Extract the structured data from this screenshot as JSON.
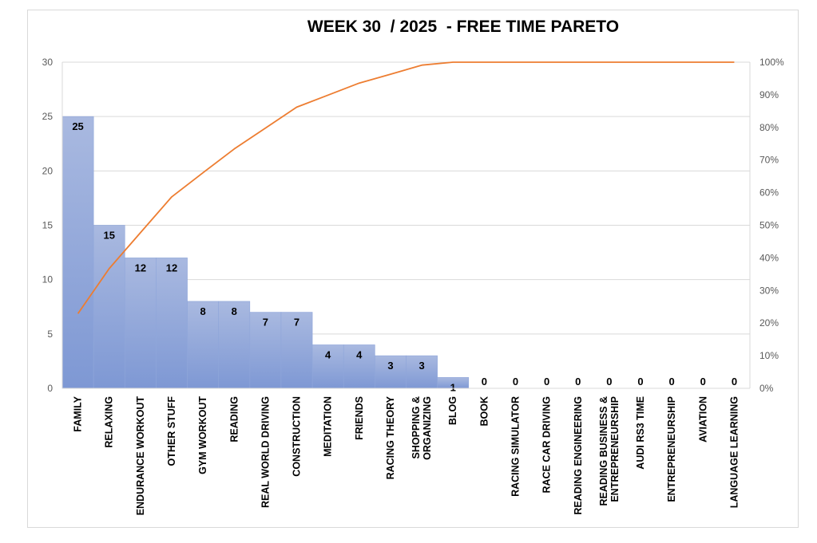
{
  "chart_data": {
    "type": "bar",
    "title": "WEEK 30  / 2025  - FREE TIME PARETO",
    "categories": [
      [
        "FAMILY"
      ],
      [
        "RELAXING"
      ],
      [
        "ENDURANCE WORKOUT"
      ],
      [
        "OTHER STUFF"
      ],
      [
        "GYM WORKOUT"
      ],
      [
        "READING"
      ],
      [
        "REAL WORLD DRIVING"
      ],
      [
        "CONSTRUCTION"
      ],
      [
        "MEDITATION"
      ],
      [
        "FRIENDS"
      ],
      [
        "RACING THEORY"
      ],
      [
        "SHOPPING &",
        "ORGANIZING"
      ],
      [
        "BLOG"
      ],
      [
        "BOOK"
      ],
      [
        "RACING SIMULATOR"
      ],
      [
        "RACE CAR DRIVING"
      ],
      [
        "READING ENGINEERING"
      ],
      [
        "READING BUSINESS &",
        "ENTREPRENEURSHIP"
      ],
      [
        "AUDI RS3 TIME"
      ],
      [
        "ENTREPRENEURSHIP"
      ],
      [
        "AVIATION"
      ],
      [
        "LANGUAGE LEARNING"
      ]
    ],
    "series": [
      {
        "type": "bar",
        "values": [
          25,
          15,
          12,
          12,
          8,
          8,
          7,
          7,
          4,
          4,
          3,
          3,
          1,
          0,
          0,
          0,
          0,
          0,
          0,
          0,
          0,
          0
        ]
      },
      {
        "type": "line",
        "axis": "right",
        "values": [
          0.229,
          0.367,
          0.477,
          0.587,
          0.661,
          0.734,
          0.798,
          0.862,
          0.899,
          0.936,
          0.963,
          0.991,
          1.0,
          1.0,
          1.0,
          1.0,
          1.0,
          1.0,
          1.0,
          1.0,
          1.0,
          1.0
        ]
      }
    ],
    "ylim": [
      0,
      30
    ],
    "yticks": [
      "0",
      "5",
      "10",
      "15",
      "20",
      "25",
      "30"
    ],
    "y2lim": [
      0,
      1
    ],
    "y2ticks": [
      "0%",
      "10%",
      "20%",
      "30%",
      "40%",
      "50%",
      "60%",
      "70%",
      "80%",
      "90%",
      "100%"
    ],
    "grid": true,
    "legend": "none",
    "colors": {
      "bar_top": "#a9b9e0",
      "bar_bottom": "#7e98d4",
      "bar_edge": "#8fa6da",
      "line": "#ed7d31",
      "grid": "#d9d9d9"
    }
  }
}
